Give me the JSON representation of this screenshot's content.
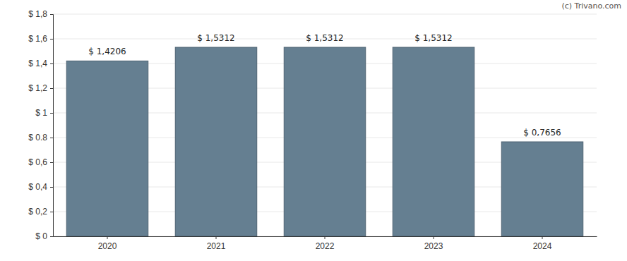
{
  "chart_data": {
    "type": "bar",
    "categories": [
      "2020",
      "2021",
      "2022",
      "2023",
      "2024"
    ],
    "values": [
      1.4206,
      1.5312,
      1.5312,
      1.5312,
      0.7656
    ],
    "value_labels": [
      "$ 1,4206",
      "$ 1,5312",
      "$ 1,5312",
      "$ 1,5312",
      "$ 0,7656"
    ],
    "color": "#657f91",
    "ylim": [
      0,
      1.8
    ],
    "yticks": [
      {
        "value": 0,
        "label": "$ 0"
      },
      {
        "value": 0.2,
        "label": "$ 0,2"
      },
      {
        "value": 0.4,
        "label": "$ 0,4"
      },
      {
        "value": 0.6,
        "label": "$ 0,6"
      },
      {
        "value": 0.8,
        "label": "$ 0.8"
      },
      {
        "value": 1,
        "label": "$ 1"
      },
      {
        "value": 1.2,
        "label": "$ 1,2"
      },
      {
        "value": 1.4,
        "label": "$ 1,4"
      },
      {
        "value": 1.6,
        "label": "$ 1,6"
      },
      {
        "value": 1.8,
        "label": "$ 1,8"
      }
    ],
    "grid": true,
    "data_labels": true,
    "annotations": [
      "(c) Trivano.com"
    ]
  }
}
